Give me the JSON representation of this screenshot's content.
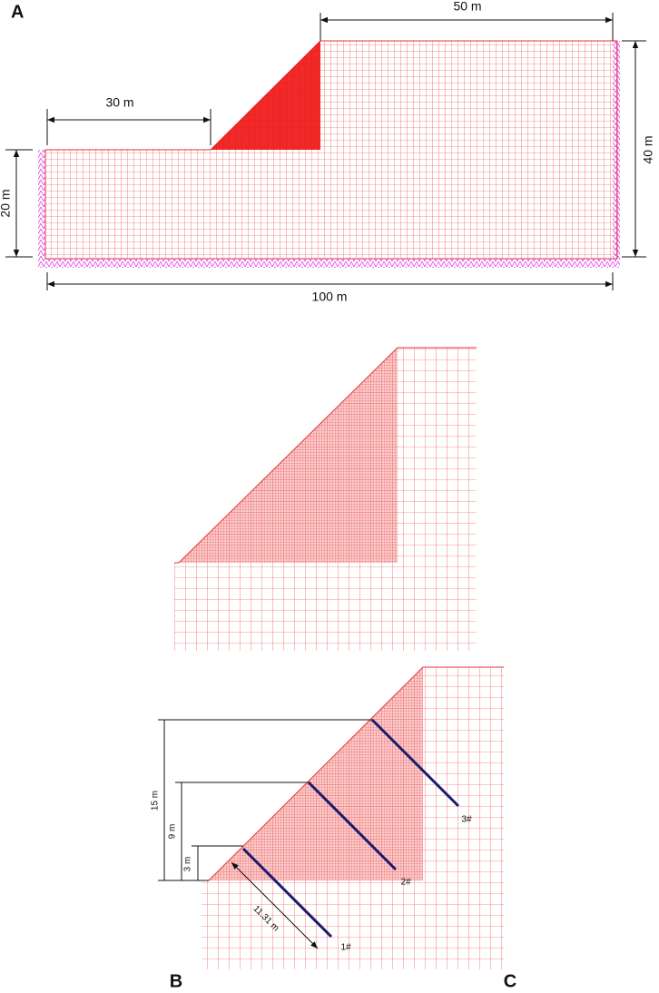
{
  "panel_labels": [
    "A",
    "B",
    "C"
  ],
  "panel_a": {
    "dimensions": [
      "50 m",
      "30 m",
      "40 m",
      "20 m",
      "100 m"
    ]
  },
  "panel_c": {
    "dimensions": [
      "15 m",
      "9 m",
      "3 m",
      "11.31 m"
    ],
    "anchors": [
      "1#",
      "2#",
      "3#"
    ]
  }
}
